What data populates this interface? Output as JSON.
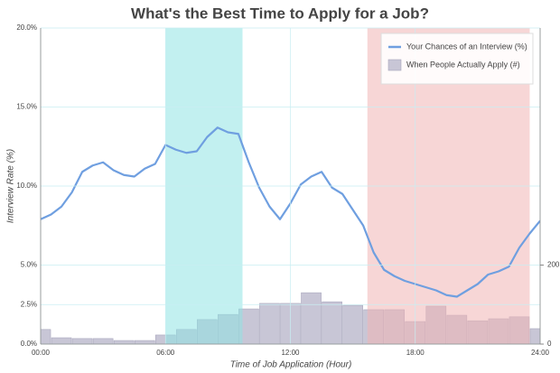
{
  "chart_data": {
    "type": "combo",
    "title": "What's the Best Time to Apply for a Job?",
    "xlabel": "Time of Job Application (Hour)",
    "ylabel": "Interview Rate (%)",
    "xlim": [
      0,
      24
    ],
    "xticks": [
      {
        "value": 0,
        "label": "00:00"
      },
      {
        "value": 6,
        "label": "06:00"
      },
      {
        "value": 12,
        "label": "12:00"
      },
      {
        "value": 18,
        "label": "18:00"
      },
      {
        "value": 24,
        "label": "24:00"
      }
    ],
    "ylim": [
      0,
      20
    ],
    "yticks": [
      {
        "value": 0,
        "label": "0.0%"
      },
      {
        "value": 2.5,
        "label": "2.5%"
      },
      {
        "value": 5,
        "label": "5.0%"
      },
      {
        "value": 10,
        "label": "10.0%"
      },
      {
        "value": 15,
        "label": "15.0%"
      },
      {
        "value": 20,
        "label": "20.0%"
      }
    ],
    "y2lim": [
      0,
      800
    ],
    "y2ticks": [
      0,
      200
    ],
    "grid": true,
    "legend": "upper right",
    "shaded_regions": [
      {
        "x": [
          6,
          9.7
        ],
        "color": "#8fe3e3"
      },
      {
        "x": [
          15.7,
          23.5
        ],
        "color": "#f0b4b4"
      }
    ],
    "series": [
      {
        "name": "When People Actually Apply (#)",
        "type": "bar",
        "axis": "y2",
        "color": "#c8c6d6",
        "x": [
          0,
          1,
          2,
          3,
          4,
          5,
          6,
          7,
          8,
          9,
          10,
          11,
          12,
          13,
          14,
          15,
          16,
          17,
          18,
          19,
          20,
          21,
          22,
          23,
          24
        ],
        "values": [
          37,
          16,
          14,
          14,
          9,
          9,
          23,
          37,
          62,
          75,
          89,
          103,
          103,
          130,
          107,
          98,
          87,
          87,
          57,
          96,
          73,
          59,
          64,
          69,
          39
        ]
      },
      {
        "name": "Your Chances of an Interview (%)",
        "type": "line",
        "axis": "y",
        "color": "#6f9fe0",
        "x": [
          0,
          0.5,
          1,
          1.5,
          2,
          2.5,
          3,
          3.5,
          4,
          4.5,
          5,
          5.5,
          6,
          6.5,
          7,
          7.5,
          8,
          8.5,
          9,
          9.5,
          10,
          10.5,
          11,
          11.5,
          12,
          12.5,
          13,
          13.5,
          14,
          14.5,
          15,
          15.5,
          16,
          16.5,
          17,
          17.5,
          18,
          18.5,
          19,
          19.5,
          20,
          20.5,
          21,
          21.5,
          22,
          22.5,
          23,
          23.5,
          24
        ],
        "values": [
          7.9,
          8.2,
          8.7,
          9.6,
          10.9,
          11.3,
          11.5,
          11.0,
          10.7,
          10.6,
          11.1,
          11.4,
          12.6,
          12.3,
          12.1,
          12.2,
          13.1,
          13.7,
          13.4,
          13.3,
          11.5,
          9.9,
          8.7,
          7.9,
          8.9,
          10.1,
          10.6,
          10.9,
          9.9,
          9.5,
          8.5,
          7.5,
          5.8,
          4.7,
          4.3,
          4.0,
          3.8,
          3.6,
          3.4,
          3.1,
          3.0,
          3.4,
          3.8,
          4.4,
          4.6,
          4.9,
          6.1,
          7.0,
          7.8
        ]
      }
    ]
  }
}
